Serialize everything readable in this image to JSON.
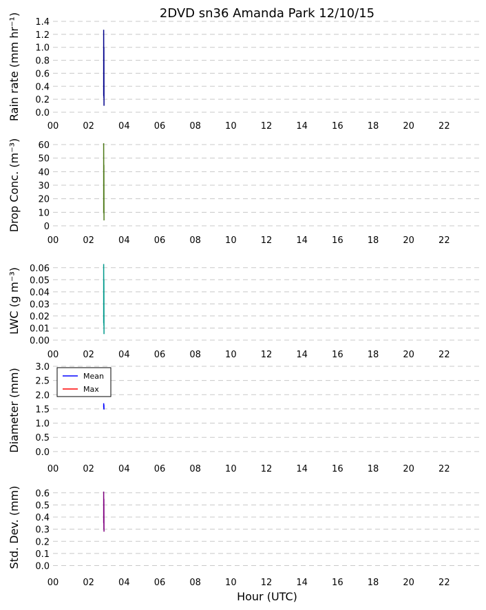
{
  "figure": {
    "title": "2DVD sn36 Amanda Park 12/10/15",
    "xlabel": "Hour (UTC)"
  },
  "chart_data": [
    {
      "type": "line",
      "ylabel": "Rain rate (mm hr⁻¹)",
      "xlim": [
        0,
        24
      ],
      "xticks": [
        "00",
        "02",
        "04",
        "06",
        "08",
        "10",
        "12",
        "14",
        "16",
        "18",
        "20",
        "22"
      ],
      "ylim": [
        0.0,
        1.4
      ],
      "yticks": [
        "0.0",
        "0.2",
        "0.4",
        "0.6",
        "0.8",
        "1.0",
        "1.2",
        "1.4"
      ],
      "grid": true,
      "series": [
        {
          "color": "#00008b",
          "x": [
            2.85,
            2.85,
            2.86,
            2.86,
            2.87
          ],
          "y": [
            0.25,
            1.27,
            0.22,
            1.0,
            0.1
          ]
        }
      ]
    },
    {
      "type": "line",
      "ylabel": "Drop Conc. (m⁻³)",
      "xlim": [
        0,
        24
      ],
      "xticks": [
        "00",
        "02",
        "04",
        "06",
        "08",
        "10",
        "12",
        "14",
        "16",
        "18",
        "20",
        "22"
      ],
      "ylim": [
        0,
        60
      ],
      "yticks": [
        "0",
        "10",
        "20",
        "30",
        "40",
        "50",
        "60"
      ],
      "grid": true,
      "series": [
        {
          "color": "#4e7a18",
          "x": [
            2.85,
            2.85,
            2.86,
            2.86,
            2.87
          ],
          "y": [
            10,
            61,
            9,
            45,
            4
          ]
        }
      ]
    },
    {
      "type": "line",
      "ylabel": "LWC (g m⁻³)",
      "xlim": [
        0,
        24
      ],
      "xticks": [
        "00",
        "02",
        "04",
        "06",
        "08",
        "10",
        "12",
        "14",
        "16",
        "18",
        "20",
        "22"
      ],
      "ylim": [
        0.0,
        0.065
      ],
      "yticks": [
        "0.00",
        "0.01",
        "0.02",
        "0.03",
        "0.04",
        "0.05",
        "0.06"
      ],
      "grid": true,
      "series": [
        {
          "color": "#009a8c",
          "x": [
            2.85,
            2.85,
            2.86,
            2.86,
            2.87
          ],
          "y": [
            0.014,
            0.063,
            0.012,
            0.05,
            0.005
          ]
        }
      ]
    },
    {
      "type": "line",
      "ylabel": "Diameter (mm)",
      "xlim": [
        0,
        24
      ],
      "xticks": [
        "00",
        "02",
        "04",
        "06",
        "08",
        "10",
        "12",
        "14",
        "16",
        "18",
        "20",
        "22"
      ],
      "ylim": [
        -0.1,
        3.0
      ],
      "yticks": [
        "0.0",
        "0.5",
        "1.0",
        "1.5",
        "2.0",
        "2.5",
        "3.0"
      ],
      "grid": true,
      "legend": {
        "position": "upper-left",
        "entries": [
          {
            "label": "Mean",
            "color": "#0000ff"
          },
          {
            "label": "Max",
            "color": "#ff0000"
          }
        ]
      },
      "series": [
        {
          "name": "Mean",
          "color": "#0000ff",
          "x": [
            2.85,
            2.85,
            2.86,
            2.86,
            2.87
          ],
          "y": [
            1.55,
            1.7,
            1.5,
            1.65,
            1.48
          ]
        },
        {
          "name": "Max",
          "color": "#ff0000",
          "x": [],
          "y": []
        }
      ]
    },
    {
      "type": "line",
      "ylabel": "Std. Dev. (mm)",
      "xlim": [
        0,
        24
      ],
      "xticks": [
        "00",
        "02",
        "04",
        "06",
        "08",
        "10",
        "12",
        "14",
        "16",
        "18",
        "20",
        "22"
      ],
      "ylim": [
        -0.02,
        0.65
      ],
      "yticks": [
        "0.0",
        "0.1",
        "0.2",
        "0.3",
        "0.4",
        "0.5",
        "0.6"
      ],
      "grid": true,
      "series": [
        {
          "color": "#800080",
          "x": [
            2.85,
            2.85,
            2.86,
            2.86,
            2.87
          ],
          "y": [
            0.35,
            0.61,
            0.3,
            0.55,
            0.28
          ]
        }
      ]
    }
  ]
}
